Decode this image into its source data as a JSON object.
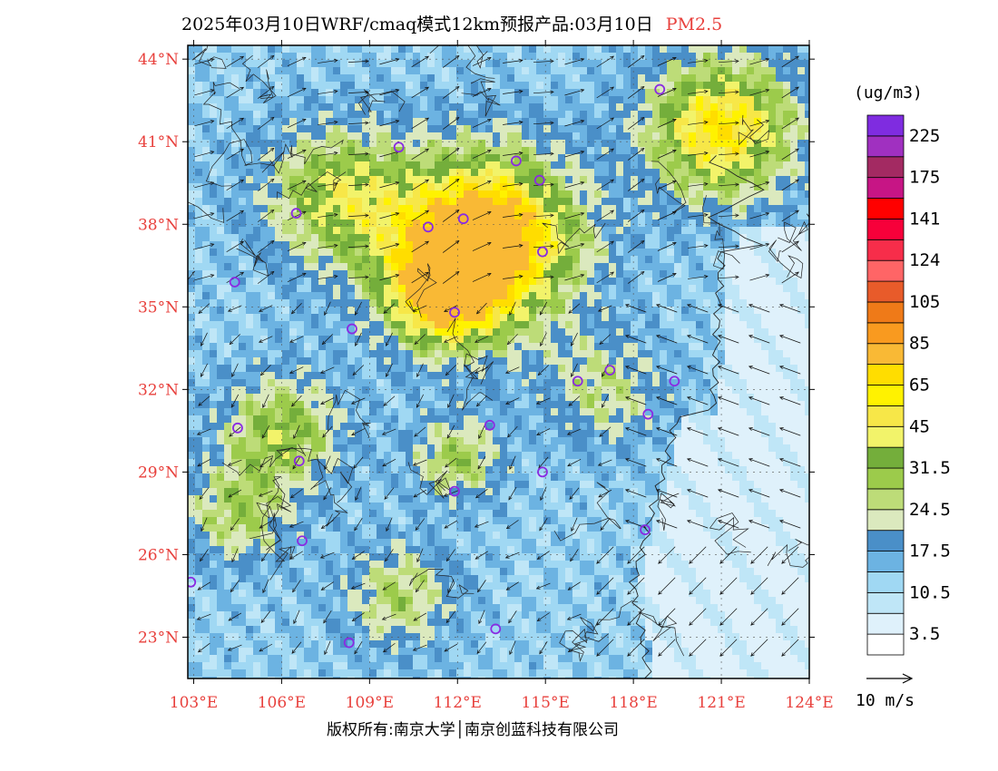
{
  "title": {
    "main": "2025年03月10日WRF/cmaq模式12km预报产品:03月10日",
    "variable": "PM2.5"
  },
  "map": {
    "lat_range": [
      21.5,
      44.5
    ],
    "lon_range": [
      102.8,
      124
    ],
    "lat_ticks": [
      {
        "value": 44,
        "label": "44°N"
      },
      {
        "value": 41,
        "label": "41°N"
      },
      {
        "value": 38,
        "label": "38°N"
      },
      {
        "value": 35,
        "label": "35°N"
      },
      {
        "value": 32,
        "label": "32°N"
      },
      {
        "value": 29,
        "label": "29°N"
      },
      {
        "value": 26,
        "label": "26°N"
      },
      {
        "value": 23,
        "label": "23°N"
      }
    ],
    "lon_ticks": [
      {
        "value": 103,
        "label": "103°E"
      },
      {
        "value": 106,
        "label": "106°E"
      },
      {
        "value": 109,
        "label": "109°E"
      },
      {
        "value": 112,
        "label": "112°E"
      },
      {
        "value": 115,
        "label": "115°E"
      },
      {
        "value": 118,
        "label": "118°E"
      },
      {
        "value": 121,
        "label": "121°E"
      },
      {
        "value": 124,
        "label": "124°E"
      }
    ],
    "stations": [
      {
        "lon": 118.9,
        "lat": 42.9
      },
      {
        "lon": 110.0,
        "lat": 40.8
      },
      {
        "lon": 114.0,
        "lat": 40.3
      },
      {
        "lon": 114.8,
        "lat": 39.6
      },
      {
        "lon": 106.5,
        "lat": 38.4
      },
      {
        "lon": 111.0,
        "lat": 37.9
      },
      {
        "lon": 112.2,
        "lat": 38.2
      },
      {
        "lon": 114.9,
        "lat": 37.0
      },
      {
        "lon": 104.4,
        "lat": 35.9
      },
      {
        "lon": 111.9,
        "lat": 34.8
      },
      {
        "lon": 108.4,
        "lat": 34.2
      },
      {
        "lon": 116.1,
        "lat": 32.3
      },
      {
        "lon": 117.2,
        "lat": 32.7
      },
      {
        "lon": 119.4,
        "lat": 32.3
      },
      {
        "lon": 118.5,
        "lat": 31.1
      },
      {
        "lon": 104.5,
        "lat": 30.6
      },
      {
        "lon": 113.1,
        "lat": 30.7
      },
      {
        "lon": 106.6,
        "lat": 29.4
      },
      {
        "lon": 114.9,
        "lat": 29.0
      },
      {
        "lon": 111.9,
        "lat": 28.3
      },
      {
        "lon": 118.4,
        "lat": 26.9
      },
      {
        "lon": 106.7,
        "lat": 26.5
      },
      {
        "lon": 102.9,
        "lat": 25.0
      },
      {
        "lon": 108.3,
        "lat": 22.8
      },
      {
        "lon": 113.3,
        "lat": 23.3
      }
    ]
  },
  "colorbar": {
    "unit": "(ug/m3)",
    "colors": [
      "#ffffff",
      "#dff1fb",
      "#bfe6f7",
      "#a0d8f3",
      "#6cb3e2",
      "#4a8fc8",
      "#dbe9be",
      "#bddc78",
      "#9ccb4b",
      "#74ae3b",
      "#f2f36a",
      "#f7e748",
      "#fff200",
      "#ffdd00",
      "#f9b935",
      "#f99a1f",
      "#ef7a18",
      "#e85b2a",
      "#ff6566",
      "#f72d4a",
      "#f7003a",
      "#ff0000",
      "#c71585",
      "#a32a62",
      "#a030c0",
      "#7f2ce0"
    ],
    "labels": [
      {
        "index": 1,
        "text": "3.5"
      },
      {
        "index": 3,
        "text": "10.5"
      },
      {
        "index": 5,
        "text": "17.5"
      },
      {
        "index": 7,
        "text": "24.5"
      },
      {
        "index": 9,
        "text": "31.5"
      },
      {
        "index": 11,
        "text": "45"
      },
      {
        "index": 13,
        "text": "65"
      },
      {
        "index": 15,
        "text": "85"
      },
      {
        "index": 17,
        "text": "105"
      },
      {
        "index": 19,
        "text": "124"
      },
      {
        "index": 21,
        "text": "141"
      },
      {
        "index": 23,
        "text": "175"
      },
      {
        "index": 25,
        "text": "225"
      }
    ]
  },
  "wind_legend": {
    "label": "10 m/s"
  },
  "copyright": {
    "text": "版权所有:南京大学│南京创蓝科技有限公司"
  }
}
